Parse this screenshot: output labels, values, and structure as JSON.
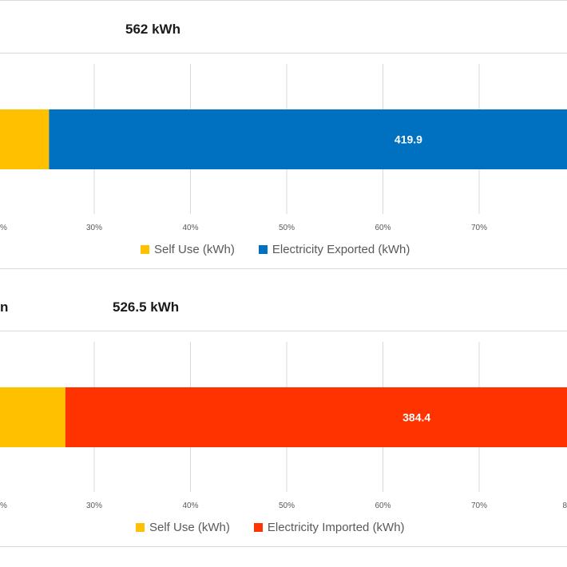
{
  "chart_data": [
    {
      "type": "bar",
      "stacked": true,
      "orientation": "horizontal",
      "percent_axis": true,
      "title": "562  kWh",
      "title_left_fragment": "",
      "x_ticks": [
        "%",
        "30%",
        "40%",
        "50%",
        "60%",
        "70%"
      ],
      "xlim_percent": [
        20,
        80
      ],
      "grid": true,
      "legend_position": "bottom",
      "series": [
        {
          "name": "Self Use (kWh)",
          "value_percent": 25.3,
          "color": "#FFC000"
        },
        {
          "name": "Electricity Exported (kWh)",
          "value": "419.9",
          "value_percent": 74.7,
          "color": "#0070C0"
        }
      ]
    },
    {
      "type": "bar",
      "stacked": true,
      "orientation": "horizontal",
      "percent_axis": true,
      "title": "526.5  kWh",
      "title_left_fragment": "n",
      "x_ticks": [
        "%",
        "30%",
        "40%",
        "50%",
        "60%",
        "70%",
        "8"
      ],
      "xlim_percent": [
        20,
        80
      ],
      "grid": true,
      "legend_position": "bottom",
      "series": [
        {
          "name": "Self Use (kWh)",
          "value_percent": 27.0,
          "color": "#FFC000"
        },
        {
          "name": "Electricity Imported (kWh)",
          "value": "384.4",
          "value_percent": 73.0,
          "color": "#FF3300"
        }
      ]
    }
  ]
}
